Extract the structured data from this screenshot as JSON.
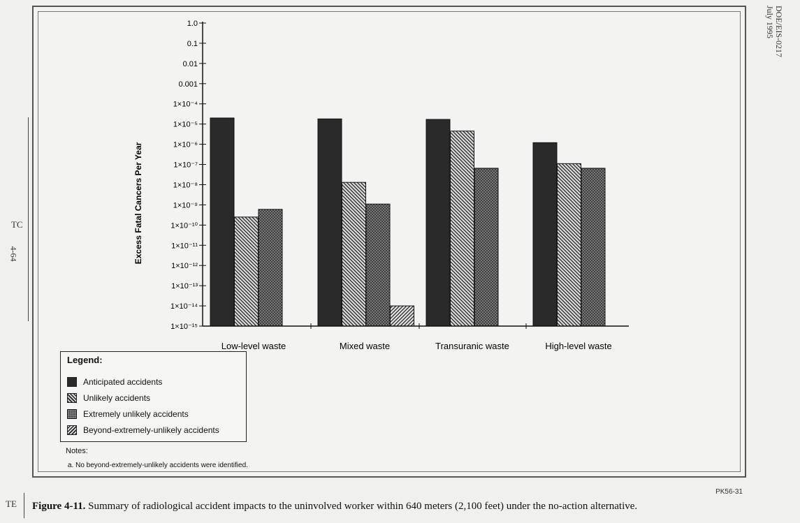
{
  "header": {
    "doc_id": "DOE/EIS-0217",
    "doc_date": "July 1995"
  },
  "margin": {
    "tc": "TC",
    "page": "4-64",
    "te": "TE"
  },
  "colors": {
    "anticipated": "#2a2a2a",
    "unlikely": "#6a6a6a",
    "extremely_unlikely": "#4d4d4d",
    "beyond": "#888888",
    "axis": "#111111"
  },
  "chart_data": {
    "type": "bar",
    "title": "",
    "xlabel": "",
    "ylabel": "Excess Fatal Cancers Per Year",
    "yscale": "log",
    "ylim": [
      1e-15,
      1.0
    ],
    "y_tick_labels": [
      "1.0",
      "0.1",
      "0.01",
      "0.001",
      "1×10⁻⁴",
      "1×10⁻⁵",
      "1×10⁻⁶",
      "1×10⁻⁷",
      "1×10⁻⁸",
      "1×10⁻⁹",
      "1×10⁻¹⁰",
      "1×10⁻¹¹",
      "1×10⁻¹²",
      "1×10⁻¹³",
      "1×10⁻¹⁴",
      "1×10⁻¹⁵"
    ],
    "categories": [
      "Low-level waste",
      "Mixed waste",
      "Transuranic waste",
      "High-level waste"
    ],
    "series": [
      {
        "name": "Anticipated accidents",
        "values": [
          2e-05,
          1.8e-05,
          1.7e-05,
          1.2e-06
        ]
      },
      {
        "name": "Unlikely accidents",
        "values": [
          2.5e-10,
          1.3e-08,
          4.5e-06,
          1.1e-07
        ]
      },
      {
        "name": "Extremely unlikely accidents",
        "values": [
          6e-10,
          1.1e-09,
          6.5e-08,
          6.5e-08
        ]
      },
      {
        "name": "Beyond-extremely-unlikely accidents",
        "values": [
          null,
          1e-14,
          null,
          null
        ]
      }
    ],
    "legend_title": "Legend:",
    "legend_position": "bottom-left"
  },
  "notes": {
    "heading": "Notes:",
    "a": "a.  No beyond-extremely-unlikely accidents were identified."
  },
  "figure_code": "PK56-31",
  "caption": {
    "label": "Figure 4-11.",
    "text": "  Summary of radiological accident impacts to the uninvolved worker within 640 meters (2,100 feet) under the no-action alternative."
  }
}
